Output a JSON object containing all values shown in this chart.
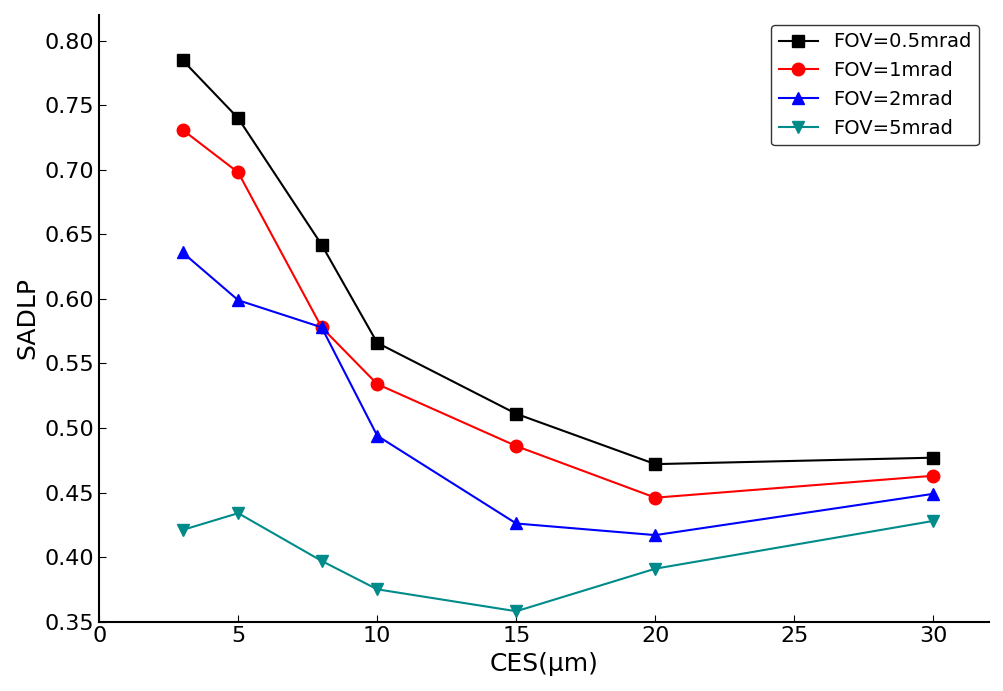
{
  "x": [
    3,
    5,
    8,
    10,
    15,
    20,
    30
  ],
  "series": [
    {
      "label": "FOV=0.5mrad",
      "color": "black",
      "marker": "s",
      "markersize": 9,
      "y": [
        0.785,
        0.74,
        0.642,
        0.566,
        0.511,
        0.472,
        0.477
      ]
    },
    {
      "label": "FOV=1mrad",
      "color": "red",
      "marker": "o",
      "markersize": 9,
      "y": [
        0.731,
        0.698,
        0.578,
        0.534,
        0.486,
        0.446,
        0.463
      ]
    },
    {
      "label": "FOV=2mrad",
      "color": "blue",
      "marker": "^",
      "markersize": 9,
      "y": [
        0.636,
        0.599,
        0.578,
        0.494,
        0.426,
        0.417,
        0.449
      ]
    },
    {
      "label": "FOV=5mrad",
      "color": "#008B8B",
      "marker": "v",
      "markersize": 9,
      "y": [
        0.421,
        0.434,
        0.397,
        0.375,
        0.358,
        0.391,
        0.428
      ]
    }
  ],
  "xlabel": "CES(μm)",
  "ylabel": "SADLP",
  "xlim": [
    0,
    32
  ],
  "ylim": [
    0.35,
    0.82
  ],
  "xticks": [
    0,
    5,
    10,
    15,
    20,
    25,
    30
  ],
  "yticks": [
    0.35,
    0.4,
    0.45,
    0.5,
    0.55,
    0.6,
    0.65,
    0.7,
    0.75,
    0.8
  ],
  "legend_loc": "upper right",
  "figsize": [
    10.04,
    6.91
  ],
  "dpi": 100,
  "linewidth": 1.5,
  "xlabel_fontsize": 18,
  "ylabel_fontsize": 18,
  "tick_fontsize": 16,
  "legend_fontsize": 14
}
